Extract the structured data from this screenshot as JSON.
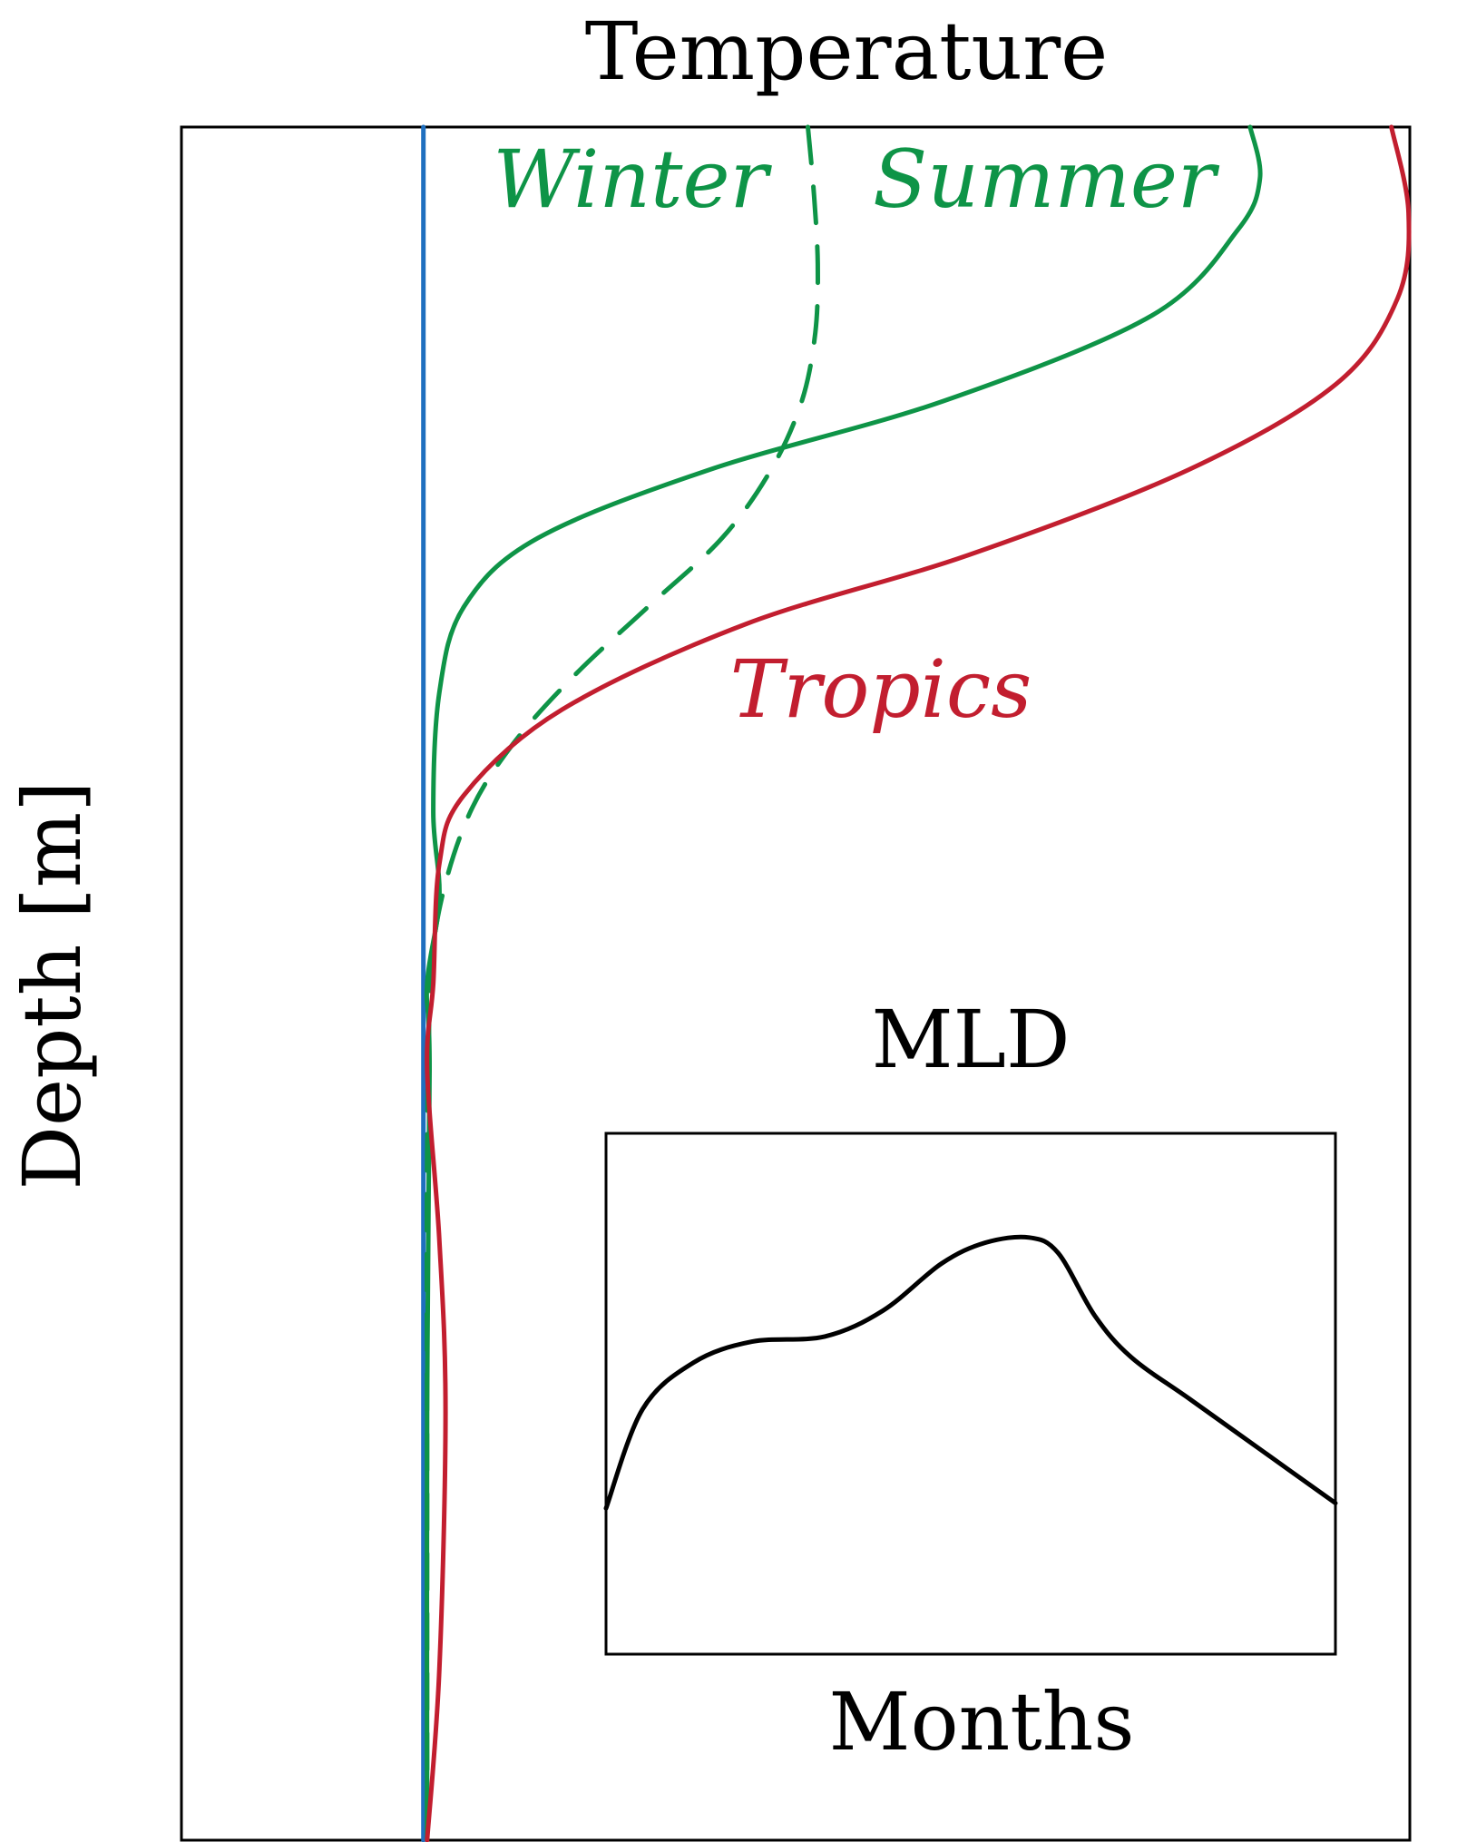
{
  "chart_data": [
    {
      "type": "line",
      "title": "Temperature",
      "xlabel": "",
      "ylabel": "Depth [m]",
      "xticks": [],
      "yticks": [],
      "xlim": [
        0,
        1
      ],
      "ylim": [
        0,
        1
      ],
      "y_inverted": true,
      "grid": false,
      "colors": {
        "deep": "#1f6fbf",
        "winter_summer": "#0e9447",
        "tropics": "#c21e2f"
      },
      "series": [
        {
          "name": "",
          "color": "#1f6fbf",
          "dash": "solid",
          "x": [
            0.197,
            0.197
          ],
          "y": [
            0.0,
            1.0
          ]
        },
        {
          "name": "Winter",
          "color": "#0e9447",
          "dash": "dashed",
          "x": [
            0.51,
            0.515,
            0.518,
            0.516,
            0.505,
            0.48,
            0.44,
            0.38,
            0.32,
            0.27,
            0.235,
            0.212,
            0.203,
            0.2,
            0.2,
            0.2
          ],
          "y": [
            0.0,
            0.04,
            0.08,
            0.12,
            0.16,
            0.2,
            0.24,
            0.28,
            0.32,
            0.36,
            0.4,
            0.45,
            0.5,
            0.6,
            0.8,
            1.0
          ]
        },
        {
          "name": "Summer",
          "color": "#0e9447",
          "dash": "solid",
          "x": [
            0.87,
            0.878,
            0.86,
            0.79,
            0.62,
            0.43,
            0.29,
            0.23,
            0.21,
            0.205,
            0.21,
            0.2,
            0.202,
            0.2,
            0.2
          ],
          "y": [
            0.0,
            0.03,
            0.06,
            0.11,
            0.16,
            0.2,
            0.24,
            0.28,
            0.33,
            0.4,
            0.45,
            0.5,
            0.55,
            0.75,
            1.0
          ]
        },
        {
          "name": "Tropics",
          "color": "#c21e2f",
          "dash": "solid",
          "x": [
            0.985,
            0.999,
            0.99,
            0.94,
            0.82,
            0.64,
            0.46,
            0.31,
            0.23,
            0.21,
            0.205,
            0.2,
            0.21,
            0.215,
            0.21,
            0.2
          ],
          "y": [
            0.0,
            0.05,
            0.1,
            0.15,
            0.2,
            0.25,
            0.29,
            0.34,
            0.39,
            0.43,
            0.5,
            0.55,
            0.65,
            0.75,
            0.9,
            1.0
          ]
        }
      ],
      "annotations": [
        {
          "text": "Winter",
          "color": "#0e9447"
        },
        {
          "text": "Summer",
          "color": "#0e9447"
        },
        {
          "text": "Tropics",
          "color": "#c21e2f"
        }
      ]
    },
    {
      "type": "line",
      "title": "MLD",
      "xlabel": "Months",
      "ylabel": "",
      "xticks": [],
      "yticks": [],
      "xlim": [
        0,
        1
      ],
      "ylim": [
        0,
        1
      ],
      "grid": false,
      "series": [
        {
          "name": "",
          "color": "#000000",
          "x": [
            0.0,
            0.05,
            0.12,
            0.2,
            0.3,
            0.38,
            0.46,
            0.52,
            0.58,
            0.62,
            0.67,
            0.72,
            0.8,
            0.9,
            1.0
          ],
          "y": [
            0.28,
            0.47,
            0.56,
            0.6,
            0.61,
            0.66,
            0.75,
            0.79,
            0.8,
            0.77,
            0.65,
            0.57,
            0.49,
            0.39,
            0.29
          ]
        }
      ]
    }
  ]
}
